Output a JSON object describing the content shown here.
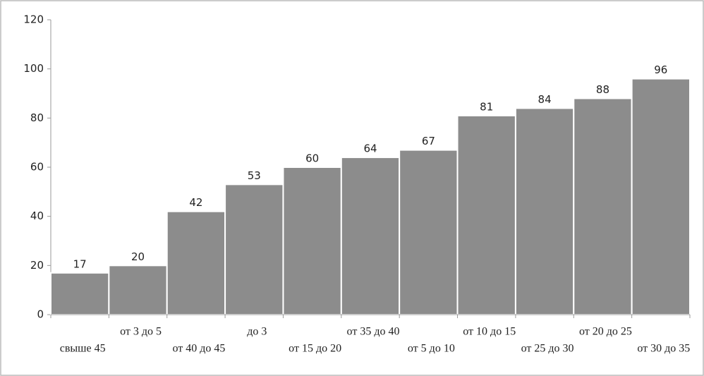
{
  "chart_data": {
    "type": "bar",
    "categories": [
      "свыше 45",
      "от 3 до 5",
      "от 40 до 45",
      "до 3",
      "от 15 до 20",
      "от 35 до 40",
      "от 5 до 10",
      "от 10 до 15",
      "от 25 до 30",
      "от 20 до 25",
      "от 30 до 35"
    ],
    "values": [
      17,
      20,
      42,
      53,
      60,
      64,
      67,
      81,
      84,
      88,
      96
    ],
    "color": "#8c8c8c",
    "ylim": [
      0,
      120
    ],
    "yticks": [
      0,
      20,
      40,
      60,
      80,
      100,
      120
    ],
    "grid": false
  }
}
